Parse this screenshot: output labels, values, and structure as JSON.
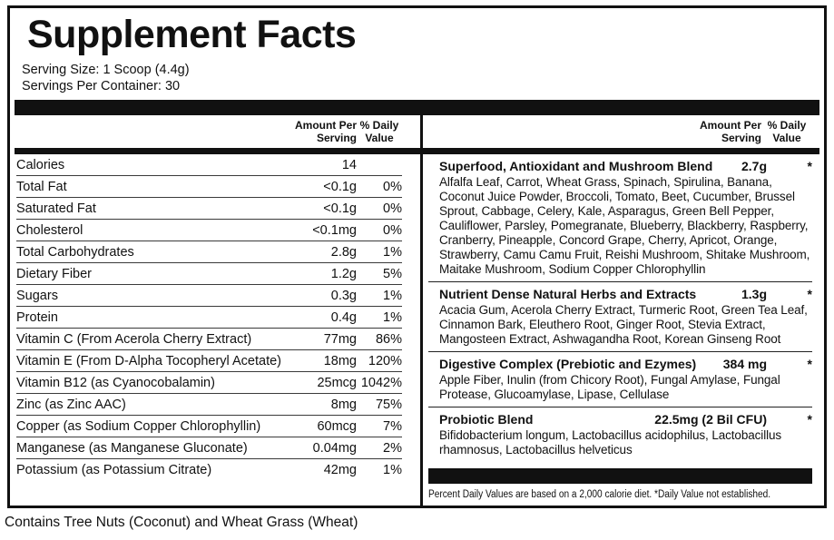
{
  "title": "Supplement Facts",
  "serving": {
    "size": "Serving Size: 1 Scoop (4.4g)",
    "per_container": "Servings Per Container: 30"
  },
  "column_headers": {
    "amount_line1": "Amount Per",
    "amount_line2": "Serving",
    "dv_line1": "% Daily",
    "dv_line2": "Value"
  },
  "nutrients": [
    {
      "name": "Calories",
      "amount": "14",
      "dv": ""
    },
    {
      "name": "Total Fat",
      "amount": "<0.1g",
      "dv": "0%"
    },
    {
      "name": "Saturated Fat",
      "amount": "<0.1g",
      "dv": "0%"
    },
    {
      "name": "Cholesterol",
      "amount": "<0.1mg",
      "dv": "0%"
    },
    {
      "name": "Total Carbohydrates",
      "amount": "2.8g",
      "dv": "1%"
    },
    {
      "name": "Dietary Fiber",
      "amount": "1.2g",
      "dv": "5%"
    },
    {
      "name": "Sugars",
      "amount": "0.3g",
      "dv": "1%"
    },
    {
      "name": "Protein",
      "amount": "0.4g",
      "dv": "1%"
    },
    {
      "name": "Vitamin C (From Acerola Cherry Extract)",
      "amount": "77mg",
      "dv": "86%"
    },
    {
      "name": "Vitamin E (From D-Alpha Tocopheryl Acetate)",
      "amount": "18mg",
      "dv": "120%"
    },
    {
      "name": "Vitamin B12 (as Cyanocobalamin)",
      "amount": "25mcg",
      "dv": "1042%"
    },
    {
      "name": "Zinc (as Zinc AAC)",
      "amount": "8mg",
      "dv": "75%"
    },
    {
      "name": "Copper (as Sodium Copper Chlorophyllin)",
      "amount": "60mcg",
      "dv": "7%"
    },
    {
      "name": "Manganese (as Manganese Gluconate)",
      "amount": "0.04mg",
      "dv": "2%"
    },
    {
      "name": "Potassium (as Potassium Citrate)",
      "amount": "42mg",
      "dv": "1%"
    }
  ],
  "blends": [
    {
      "title": "Superfood, Antioxidant and Mushroom Blend",
      "amount": "2.7g",
      "dv": "*",
      "ingredients": "Alfalfa Leaf, Carrot, Wheat Grass, Spinach, Spirulina, Banana, Coconut Juice Powder, Broccoli, Tomato, Beet, Cucumber, Brussel Sprout, Cabbage, Celery, Kale, Asparagus, Green Bell Pepper, Cauliflower, Parsley, Pomegranate, Blueberry, Blackberry, Raspberry, Cranberry, Pineapple, Concord Grape, Cherry, Apricot, Orange, Strawberry, Camu Camu Fruit, Reishi Mushroom, Shitake Mushroom, Maitake Mushroom, Sodium Copper Chlorophyllin"
    },
    {
      "title": "Nutrient Dense Natural Herbs and Extracts",
      "amount": "1.3g",
      "dv": "*",
      "ingredients": "Acacia Gum, Acerola Cherry Extract, Turmeric Root, Green Tea Leaf, Cinnamon Bark, Eleuthero Root, Ginger Root, Stevia Extract, Mangosteen Extract, Ashwagandha Root, Korean Ginseng Root"
    },
    {
      "title": "Digestive Complex (Prebiotic and Ezymes)",
      "amount": "384 mg",
      "dv": "*",
      "ingredients": "Apple Fiber, Inulin (from Chicory Root), Fungal Amylase, Fungal Protease, Glucoamylase, Lipase, Cellulase"
    },
    {
      "title": "Probiotic Blend",
      "amount": "22.5mg (2 Bil CFU)",
      "dv": "*",
      "ingredients": "Bifidobacterium longum, Lactobacillus acidophilus, Lactobacillus rhamnosus, Lactobacillus helveticus"
    }
  ],
  "footnote": "Percent Daily Values are based on a 2,000 calorie diet. *Daily Value not established.",
  "allergen": "Contains Tree Nuts (Coconut) and Wheat Grass (Wheat)",
  "colors": {
    "ink": "#111111",
    "paper": "#ffffff"
  }
}
